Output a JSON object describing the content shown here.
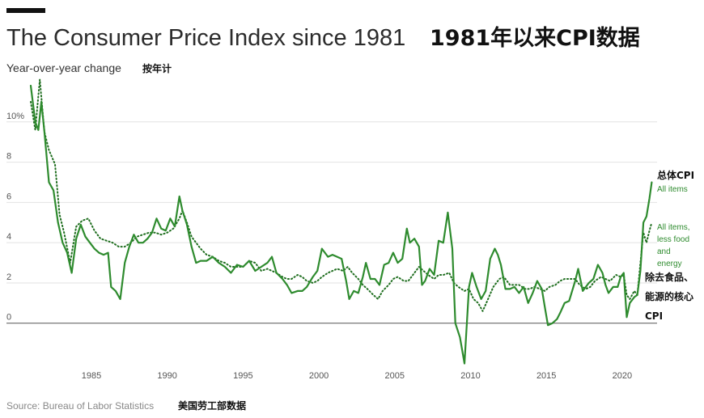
{
  "header": {
    "title": "The Consumer Price Index since 1981",
    "title_cn": "1981年以来CPI数据",
    "subtitle": "Year-over-year change",
    "subtitle_cn": "按年计"
  },
  "footer": {
    "source": "Source: Bureau of Labor Statistics",
    "source_cn": "美国劳工部数据"
  },
  "labels": {
    "all_items_cn": "总体CPI",
    "all_items_en": "All items",
    "core_en_1": "All items,",
    "core_en_2": "less food",
    "core_en_3": "and",
    "core_en_4": "energy",
    "core_cn_1": "除去食品、",
    "core_cn_2": "能源的核心",
    "core_cn_3": "CPI"
  },
  "colors": {
    "series": "#2e8b2e",
    "grid": "#e2e2e2",
    "zero": "#555555"
  },
  "chart_data": {
    "type": "line",
    "xlim": [
      1981,
      2022.3
    ],
    "ylim": [
      -2.1,
      11.8
    ],
    "yticks": [
      0,
      2,
      4,
      6,
      8,
      10
    ],
    "ytick_labels": [
      "0",
      "2",
      "4",
      "6",
      "8",
      "10%"
    ],
    "xticks": [
      1985,
      1990,
      1995,
      2000,
      2005,
      2010,
      2015,
      2020
    ],
    "xtick_labels": [
      "1985",
      "1990",
      "1995",
      "2000",
      "2005",
      "2010",
      "2015",
      "2020"
    ],
    "grid": true,
    "series": [
      {
        "name": "All items",
        "style": "solid",
        "points": [
          [
            1981.0,
            11.8
          ],
          [
            1981.3,
            10.0
          ],
          [
            1981.5,
            9.6
          ],
          [
            1981.7,
            11.0
          ],
          [
            1981.9,
            9.5
          ],
          [
            1982.2,
            7.0
          ],
          [
            1982.5,
            6.6
          ],
          [
            1982.8,
            5.0
          ],
          [
            1983.1,
            4.0
          ],
          [
            1983.4,
            3.5
          ],
          [
            1983.7,
            2.5
          ],
          [
            1984.0,
            4.2
          ],
          [
            1984.3,
            4.9
          ],
          [
            1984.6,
            4.3
          ],
          [
            1984.9,
            4.0
          ],
          [
            1985.2,
            3.7
          ],
          [
            1985.5,
            3.5
          ],
          [
            1985.8,
            3.4
          ],
          [
            1986.1,
            3.5
          ],
          [
            1986.3,
            1.8
          ],
          [
            1986.6,
            1.6
          ],
          [
            1986.9,
            1.2
          ],
          [
            1987.2,
            3.0
          ],
          [
            1987.5,
            3.8
          ],
          [
            1987.8,
            4.4
          ],
          [
            1988.1,
            4.0
          ],
          [
            1988.4,
            4.0
          ],
          [
            1988.7,
            4.2
          ],
          [
            1989.0,
            4.5
          ],
          [
            1989.3,
            5.2
          ],
          [
            1989.6,
            4.7
          ],
          [
            1989.9,
            4.6
          ],
          [
            1990.2,
            5.2
          ],
          [
            1990.5,
            4.8
          ],
          [
            1990.8,
            6.3
          ],
          [
            1991.0,
            5.6
          ],
          [
            1991.3,
            4.9
          ],
          [
            1991.6,
            3.8
          ],
          [
            1991.9,
            3.0
          ],
          [
            1992.2,
            3.1
          ],
          [
            1992.6,
            3.1
          ],
          [
            1993.0,
            3.3
          ],
          [
            1993.4,
            3.0
          ],
          [
            1993.8,
            2.8
          ],
          [
            1994.2,
            2.5
          ],
          [
            1994.6,
            2.9
          ],
          [
            1995.0,
            2.8
          ],
          [
            1995.4,
            3.1
          ],
          [
            1995.8,
            2.6
          ],
          [
            1996.2,
            2.8
          ],
          [
            1996.6,
            3.0
          ],
          [
            1996.9,
            3.3
          ],
          [
            1997.2,
            2.5
          ],
          [
            1997.6,
            2.2
          ],
          [
            1997.9,
            1.9
          ],
          [
            1998.2,
            1.5
          ],
          [
            1998.6,
            1.6
          ],
          [
            1998.9,
            1.6
          ],
          [
            1999.2,
            1.8
          ],
          [
            1999.6,
            2.3
          ],
          [
            1999.9,
            2.6
          ],
          [
            2000.2,
            3.7
          ],
          [
            2000.6,
            3.3
          ],
          [
            2000.9,
            3.4
          ],
          [
            2001.2,
            3.3
          ],
          [
            2001.5,
            3.2
          ],
          [
            2001.8,
            2.1
          ],
          [
            2002.0,
            1.2
          ],
          [
            2002.3,
            1.6
          ],
          [
            2002.6,
            1.5
          ],
          [
            2002.9,
            2.3
          ],
          [
            2003.1,
            3.0
          ],
          [
            2003.4,
            2.2
          ],
          [
            2003.7,
            2.2
          ],
          [
            2004.0,
            1.9
          ],
          [
            2004.3,
            2.9
          ],
          [
            2004.6,
            3.0
          ],
          [
            2004.9,
            3.5
          ],
          [
            2005.2,
            3.0
          ],
          [
            2005.5,
            3.2
          ],
          [
            2005.8,
            4.7
          ],
          [
            2006.0,
            4.0
          ],
          [
            2006.3,
            4.2
          ],
          [
            2006.6,
            3.8
          ],
          [
            2006.8,
            1.9
          ],
          [
            2007.0,
            2.1
          ],
          [
            2007.3,
            2.7
          ],
          [
            2007.6,
            2.4
          ],
          [
            2007.9,
            4.1
          ],
          [
            2008.2,
            4.0
          ],
          [
            2008.5,
            5.5
          ],
          [
            2008.8,
            3.7
          ],
          [
            2009.0,
            0.0
          ],
          [
            2009.3,
            -0.7
          ],
          [
            2009.6,
            -2.0
          ],
          [
            2009.9,
            1.8
          ],
          [
            2010.1,
            2.5
          ],
          [
            2010.4,
            1.8
          ],
          [
            2010.7,
            1.2
          ],
          [
            2011.0,
            1.6
          ],
          [
            2011.3,
            3.2
          ],
          [
            2011.6,
            3.7
          ],
          [
            2011.8,
            3.4
          ],
          [
            2012.0,
            2.9
          ],
          [
            2012.3,
            1.7
          ],
          [
            2012.6,
            1.7
          ],
          [
            2012.9,
            1.8
          ],
          [
            2013.2,
            1.5
          ],
          [
            2013.5,
            1.8
          ],
          [
            2013.8,
            1.0
          ],
          [
            2014.1,
            1.5
          ],
          [
            2014.4,
            2.1
          ],
          [
            2014.7,
            1.7
          ],
          [
            2014.9,
            0.8
          ],
          [
            2015.1,
            -0.1
          ],
          [
            2015.4,
            0.0
          ],
          [
            2015.7,
            0.2
          ],
          [
            2015.9,
            0.5
          ],
          [
            2016.2,
            1.0
          ],
          [
            2016.5,
            1.1
          ],
          [
            2016.9,
            2.1
          ],
          [
            2017.1,
            2.7
          ],
          [
            2017.4,
            1.6
          ],
          [
            2017.8,
            2.0
          ],
          [
            2018.1,
            2.2
          ],
          [
            2018.4,
            2.9
          ],
          [
            2018.7,
            2.5
          ],
          [
            2018.9,
            1.9
          ],
          [
            2019.1,
            1.5
          ],
          [
            2019.4,
            1.8
          ],
          [
            2019.7,
            1.8
          ],
          [
            2019.9,
            2.3
          ],
          [
            2020.1,
            2.5
          ],
          [
            2020.3,
            0.3
          ],
          [
            2020.5,
            1.0
          ],
          [
            2020.8,
            1.3
          ],
          [
            2021.0,
            1.4
          ],
          [
            2021.2,
            2.6
          ],
          [
            2021.4,
            5.0
          ],
          [
            2021.6,
            5.3
          ],
          [
            2021.8,
            6.2
          ],
          [
            2021.95,
            7.0
          ]
        ]
      },
      {
        "name": "All items, less food and energy",
        "style": "dotted",
        "points": [
          [
            1981.0,
            11.0
          ],
          [
            1981.3,
            9.6
          ],
          [
            1981.6,
            12.1
          ],
          [
            1981.9,
            9.5
          ],
          [
            1982.2,
            8.6
          ],
          [
            1982.6,
            7.9
          ],
          [
            1982.9,
            5.4
          ],
          [
            1983.2,
            4.5
          ],
          [
            1983.6,
            3.0
          ],
          [
            1984.0,
            4.8
          ],
          [
            1984.4,
            5.1
          ],
          [
            1984.8,
            5.2
          ],
          [
            1985.2,
            4.6
          ],
          [
            1985.6,
            4.2
          ],
          [
            1986.0,
            4.1
          ],
          [
            1986.4,
            4.0
          ],
          [
            1986.8,
            3.8
          ],
          [
            1987.2,
            3.8
          ],
          [
            1987.6,
            4.0
          ],
          [
            1988.0,
            4.3
          ],
          [
            1988.4,
            4.4
          ],
          [
            1988.8,
            4.5
          ],
          [
            1989.2,
            4.5
          ],
          [
            1989.6,
            4.4
          ],
          [
            1990.0,
            4.5
          ],
          [
            1990.4,
            4.7
          ],
          [
            1990.8,
            5.2
          ],
          [
            1991.0,
            5.6
          ],
          [
            1991.3,
            5.0
          ],
          [
            1991.6,
            4.3
          ],
          [
            1991.9,
            4.0
          ],
          [
            1992.2,
            3.7
          ],
          [
            1992.6,
            3.4
          ],
          [
            1993.0,
            3.3
          ],
          [
            1993.4,
            3.1
          ],
          [
            1993.8,
            3.0
          ],
          [
            1994.2,
            2.8
          ],
          [
            1994.6,
            2.8
          ],
          [
            1995.0,
            2.8
          ],
          [
            1995.4,
            3.1
          ],
          [
            1995.8,
            3.0
          ],
          [
            1996.2,
            2.6
          ],
          [
            1996.6,
            2.7
          ],
          [
            1996.9,
            2.6
          ],
          [
            1997.2,
            2.5
          ],
          [
            1997.6,
            2.3
          ],
          [
            1997.9,
            2.2
          ],
          [
            1998.2,
            2.2
          ],
          [
            1998.6,
            2.4
          ],
          [
            1998.9,
            2.3
          ],
          [
            1999.2,
            2.1
          ],
          [
            1999.6,
            2.0
          ],
          [
            1999.9,
            2.1
          ],
          [
            2000.2,
            2.3
          ],
          [
            2000.6,
            2.5
          ],
          [
            2000.9,
            2.6
          ],
          [
            2001.2,
            2.7
          ],
          [
            2001.6,
            2.6
          ],
          [
            2001.9,
            2.8
          ],
          [
            2002.2,
            2.5
          ],
          [
            2002.6,
            2.2
          ],
          [
            2002.9,
            1.9
          ],
          [
            2003.2,
            1.7
          ],
          [
            2003.6,
            1.4
          ],
          [
            2003.9,
            1.2
          ],
          [
            2004.2,
            1.6
          ],
          [
            2004.6,
            1.9
          ],
          [
            2004.9,
            2.2
          ],
          [
            2005.2,
            2.3
          ],
          [
            2005.6,
            2.1
          ],
          [
            2005.9,
            2.1
          ],
          [
            2006.2,
            2.4
          ],
          [
            2006.6,
            2.8
          ],
          [
            2006.9,
            2.6
          ],
          [
            2007.2,
            2.4
          ],
          [
            2007.6,
            2.2
          ],
          [
            2007.9,
            2.4
          ],
          [
            2008.2,
            2.4
          ],
          [
            2008.6,
            2.5
          ],
          [
            2008.9,
            2.0
          ],
          [
            2009.2,
            1.8
          ],
          [
            2009.6,
            1.6
          ],
          [
            2009.9,
            1.7
          ],
          [
            2010.2,
            1.2
          ],
          [
            2010.5,
            1.0
          ],
          [
            2010.8,
            0.6
          ],
          [
            2011.1,
            1.1
          ],
          [
            2011.5,
            1.8
          ],
          [
            2011.9,
            2.2
          ],
          [
            2012.2,
            2.3
          ],
          [
            2012.6,
            1.9
          ],
          [
            2012.9,
            1.9
          ],
          [
            2013.2,
            1.9
          ],
          [
            2013.6,
            1.7
          ],
          [
            2013.9,
            1.7
          ],
          [
            2014.2,
            1.8
          ],
          [
            2014.6,
            1.7
          ],
          [
            2014.9,
            1.6
          ],
          [
            2015.2,
            1.8
          ],
          [
            2015.6,
            1.9
          ],
          [
            2015.9,
            2.1
          ],
          [
            2016.2,
            2.2
          ],
          [
            2016.6,
            2.2
          ],
          [
            2016.9,
            2.2
          ],
          [
            2017.2,
            1.9
          ],
          [
            2017.6,
            1.7
          ],
          [
            2017.9,
            1.8
          ],
          [
            2018.2,
            2.1
          ],
          [
            2018.6,
            2.3
          ],
          [
            2018.9,
            2.2
          ],
          [
            2019.2,
            2.1
          ],
          [
            2019.6,
            2.4
          ],
          [
            2019.9,
            2.3
          ],
          [
            2020.1,
            2.4
          ],
          [
            2020.3,
            1.4
          ],
          [
            2020.5,
            1.2
          ],
          [
            2020.8,
            1.6
          ],
          [
            2021.0,
            1.4
          ],
          [
            2021.2,
            3.0
          ],
          [
            2021.4,
            4.5
          ],
          [
            2021.6,
            4.0
          ],
          [
            2021.8,
            4.6
          ],
          [
            2021.95,
            5.0
          ]
        ]
      }
    ]
  }
}
